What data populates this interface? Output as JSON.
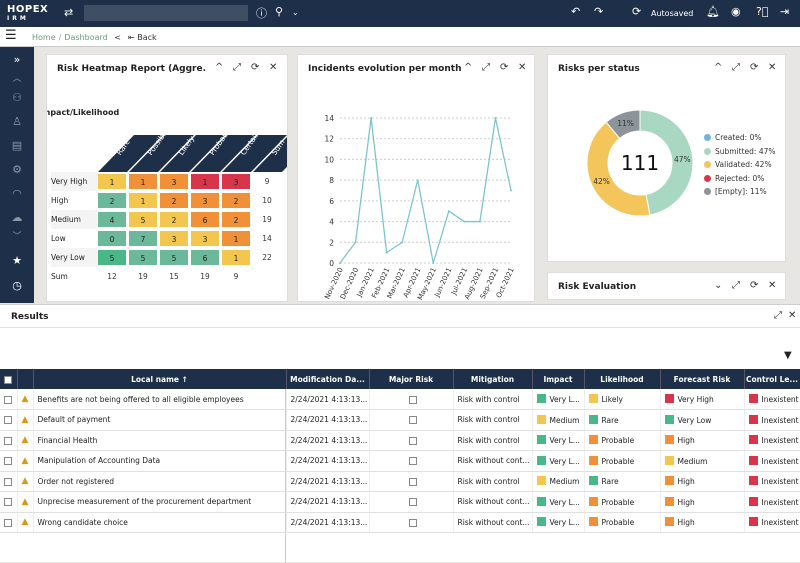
{
  "app": {
    "logo": "HOPEX",
    "logo_sub": "IRM",
    "autosaved": "Autosaved"
  },
  "nav": {
    "home": "Home",
    "dashboard": "Dashboard",
    "back": "Back"
  },
  "colors": {
    "very_high": "#d6354a",
    "high": "#f0913a",
    "medium": "#f2c64f",
    "low": "#6bb89a",
    "very_low": "#49b787",
    "accent": "#1e3049"
  },
  "heatmap": {
    "title": "Risk Heatmap Report (Aggre...",
    "axis_label": "Impact/Likelihood",
    "columns": [
      "Rare",
      "Possible",
      "Likely",
      "Probable",
      "Certain",
      "Sum"
    ],
    "rows": [
      {
        "label": "Very High",
        "values": [
          "1",
          "1",
          "3",
          "1",
          "3"
        ],
        "sum": "9"
      },
      {
        "label": "High",
        "values": [
          "2",
          "1",
          "2",
          "3",
          "2"
        ],
        "sum": "10"
      },
      {
        "label": "Medium",
        "values": [
          "4",
          "5",
          "2",
          "6",
          "2"
        ],
        "sum": "19"
      },
      {
        "label": "Low",
        "values": [
          "0",
          "7",
          "3",
          "3",
          "1"
        ],
        "sum": "14"
      },
      {
        "label": "Very Low",
        "values": [
          "5",
          "5",
          "5",
          "6",
          "1"
        ],
        "sum": "22"
      }
    ],
    "sum_row": {
      "label": "Sum",
      "values": [
        "12",
        "19",
        "15",
        "19",
        "9"
      ]
    }
  },
  "incidents": {
    "title": "Incidents evolution per month"
  },
  "status": {
    "title": "Risks per status",
    "center": "111",
    "legend": [
      {
        "label": "Created: 0%",
        "color": "#6fb3d9"
      },
      {
        "label": "Submitted: 47%",
        "color": "#a9d8c2"
      },
      {
        "label": "Validated: 42%",
        "color": "#f4c55b"
      },
      {
        "label": "Rejected: 0%",
        "color": "#d6354a"
      },
      {
        "label": "[Empty]: 11%",
        "color": "#8c9399"
      }
    ],
    "slice_labels": {
      "submitted": "47%",
      "validated": "42%",
      "empty": "11%"
    }
  },
  "riskeval": {
    "title": "Risk Evaluation"
  },
  "results": {
    "title": "Results",
    "columns": [
      "Local name ↑",
      "Modification Da...",
      "Major Risk",
      "Mitigation",
      "Impact",
      "Likelihood",
      "Forecast Risk",
      "Control Le..."
    ],
    "rows": [
      {
        "name": "Benefits are not being offered to all eligible employees",
        "date": "2/24/2021 4:13:13...",
        "mitigation": "Risk with control",
        "impact": "Very L...",
        "impact_color": "#49b787",
        "likelihood": "Likely",
        "likelihood_color": "#f2c64f",
        "forecast": "Very High",
        "forecast_color": "#d6354a",
        "control": "Inexistent"
      },
      {
        "name": "Default of payment",
        "date": "2/24/2021 4:13:13...",
        "mitigation": "Risk with control",
        "impact": "Medium",
        "impact_color": "#f2c64f",
        "likelihood": "Rare",
        "likelihood_color": "#49b787",
        "forecast": "Very Low",
        "forecast_color": "#49b787",
        "control": "Inexistent"
      },
      {
        "name": "Financial Health",
        "date": "2/24/2021 4:13:13...",
        "mitigation": "Risk with control",
        "impact": "Very L...",
        "impact_color": "#49b787",
        "likelihood": "Probable",
        "likelihood_color": "#f0913a",
        "forecast": "High",
        "forecast_color": "#f0913a",
        "control": "Inexistent"
      },
      {
        "name": "Manipulation of Accounting Data",
        "date": "2/24/2021 4:13:13...",
        "mitigation": "Risk without cont...",
        "impact": "Very L...",
        "impact_color": "#49b787",
        "likelihood": "Probable",
        "likelihood_color": "#f0913a",
        "forecast": "Medium",
        "forecast_color": "#f2c64f",
        "control": "Inexistent"
      },
      {
        "name": "Order not registered",
        "date": "2/24/2021 4:13:13...",
        "mitigation": "Risk with control",
        "impact": "Medium",
        "impact_color": "#f2c64f",
        "likelihood": "Rare",
        "likelihood_color": "#49b787",
        "forecast": "High",
        "forecast_color": "#f0913a",
        "control": "Inexistent"
      },
      {
        "name": "Unprecise measurement of the procurement department",
        "date": "2/24/2021 4:13:13...",
        "mitigation": "Risk without cont...",
        "impact": "Very L...",
        "impact_color": "#49b787",
        "likelihood": "Probable",
        "likelihood_color": "#f0913a",
        "forecast": "High",
        "forecast_color": "#f0913a",
        "control": "Inexistent"
      },
      {
        "name": "Wrong candidate choice",
        "date": "2/24/2021 4:13:13...",
        "mitigation": "Risk without cont...",
        "impact": "Very L...",
        "impact_color": "#49b787",
        "likelihood": "Probable",
        "likelihood_color": "#f0913a",
        "forecast": "High",
        "forecast_color": "#f0913a",
        "control": "Inexistent"
      }
    ]
  },
  "chart_data": {
    "type": "line",
    "title": "Incidents evolution per month",
    "categories": [
      "Nov-2020",
      "Dec-2020",
      "Jan-2021",
      "Feb-2021",
      "Mar-2021",
      "Apr-2021",
      "May-2021",
      "Jun-2021",
      "Jul-2021",
      "Aug-2021",
      "Sep-2021",
      "Oct-2021"
    ],
    "values": [
      0,
      2,
      14,
      1,
      2,
      8,
      0,
      5,
      4,
      4,
      14,
      7
    ],
    "ylim": [
      0,
      14
    ],
    "yticks": [
      0,
      2,
      4,
      6,
      8,
      10,
      12,
      14
    ],
    "grid": true
  }
}
